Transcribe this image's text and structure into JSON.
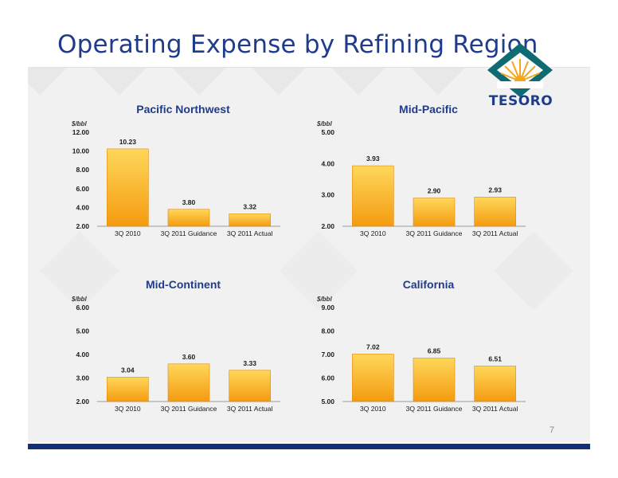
{
  "page": {
    "title": "Operating Expense by Refining Region",
    "page_number": "7",
    "logo_text": "TESORO"
  },
  "colors": {
    "title": "#1f3c8c",
    "bar_top": "#ffd75a",
    "bar_bottom": "#f49b10",
    "bottom_bar": "#13307a",
    "logo_teal": "#0e6b72",
    "logo_gold": "#f4a51c"
  },
  "chart_data": [
    {
      "type": "bar",
      "title": "Pacific Northwest",
      "unit": "$/bbl",
      "categories": [
        "3Q 2010",
        "3Q 2011 Guidance",
        "3Q 2011 Actual"
      ],
      "values": [
        10.23,
        3.8,
        3.32
      ],
      "value_labels": [
        "10.23",
        "3.80",
        "3.32"
      ],
      "ylim": [
        2.0,
        12.0
      ],
      "yticks": [
        "2.00",
        "4.00",
        "6.00",
        "8.00",
        "10.00",
        "12.00"
      ],
      "ytick_values": [
        2,
        4,
        6,
        8,
        10,
        12
      ]
    },
    {
      "type": "bar",
      "title": "Mid-Pacific",
      "unit": "$/bbl",
      "categories": [
        "3Q 2010",
        "3Q 2011 Guidance",
        "3Q 2011 Actual"
      ],
      "values": [
        3.93,
        2.9,
        2.93
      ],
      "value_labels": [
        "3.93",
        "2.90",
        "2.93"
      ],
      "ylim": [
        2.0,
        5.0
      ],
      "yticks": [
        "2.00",
        "3.00",
        "4.00",
        "5.00"
      ],
      "ytick_values": [
        2,
        3,
        4,
        5
      ]
    },
    {
      "type": "bar",
      "title": "Mid-Continent",
      "unit": "$/bbl",
      "categories": [
        "3Q 2010",
        "3Q 2011 Guidance",
        "3Q 2011 Actual"
      ],
      "values": [
        3.04,
        3.6,
        3.33
      ],
      "value_labels": [
        "3.04",
        "3.60",
        "3.33"
      ],
      "ylim": [
        2.0,
        6.0
      ],
      "yticks": [
        "2.00",
        "3.00",
        "4.00",
        "5.00",
        "6.00"
      ],
      "ytick_values": [
        2,
        3,
        4,
        5,
        6
      ]
    },
    {
      "type": "bar",
      "title": "California",
      "unit": "$/bbl",
      "categories": [
        "3Q 2010",
        "3Q 2011 Guidance",
        "3Q 2011 Actual"
      ],
      "values": [
        7.02,
        6.85,
        6.51
      ],
      "value_labels": [
        "7.02",
        "6.85",
        "6.51"
      ],
      "ylim": [
        5.0,
        9.0
      ],
      "yticks": [
        "5.00",
        "6.00",
        "7.00",
        "8.00",
        "9.00"
      ],
      "ytick_values": [
        5,
        6,
        7,
        8,
        9
      ]
    }
  ]
}
